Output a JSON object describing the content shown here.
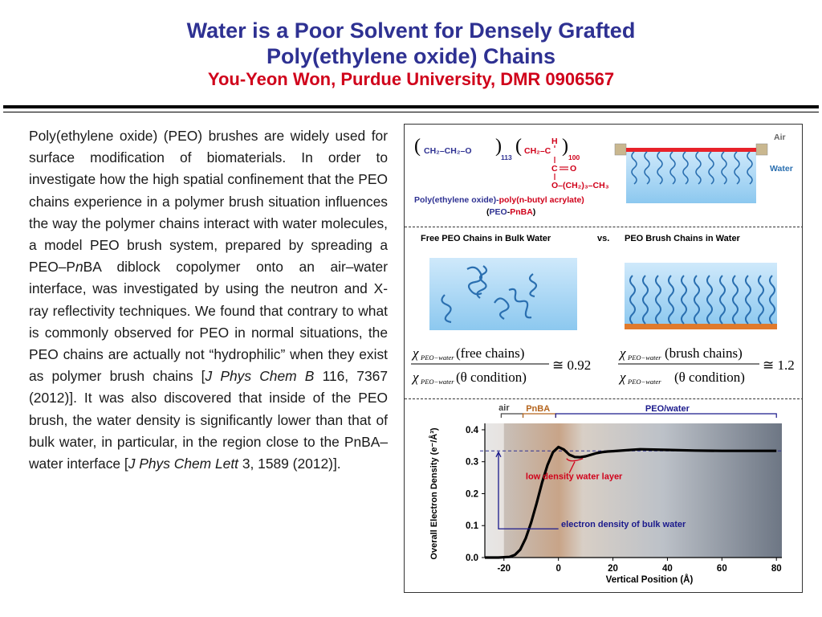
{
  "title": {
    "line1": "Water is a Poor Solvent for Densely Grafted",
    "line2": "Poly(ethylene oxide) Chains",
    "subtitle": "You-Yeon Won, Purdue University, DMR 0906567"
  },
  "body": {
    "p1": "Poly(ethylene oxide) (PEO) brushes are widely used for surface modification of biomaterials. In order to investigate how the high spatial confinement that the PEO chains experience in a polymer brush situation influences the way the polymer chains interact with water molecules, a model PEO brush system, prepared by spreading a PEO–P",
    "p1_italic": "n",
    "p2": "BA diblock copolymer onto an air–water interface, was investigated by using the neutron and X-ray reflectivity techniques. We found that contrary to what is commonly observed for PEO in normal situations, the PEO chains are actually not “hydrophilic” when they exist as polymer brush chains [",
    "cite1_journal": "J Phys Chem B",
    "cite1_rest": " 116, 7367 (2012)]. It was also discovered that inside of the PEO brush, the water density is significantly lower than that of bulk water, in particular, in the region close to the PnBA–water interface [",
    "cite2_journal": "J Phys Chem Lett",
    "cite2_rest": " 3, 1589 (2012)]."
  },
  "figure": {
    "panel1": {
      "peo_unit": "CH₂–CH₂–O",
      "peo_n": "113",
      "pnba_unit": "CH₂–C",
      "pnba_h": "H",
      "pnba_c": "C",
      "pnba_o": "O",
      "pnba_sidechain": "O–(CH₂)₃–CH₃",
      "pnba_n": "100",
      "name_black": "Poly(ethylene oxide)-",
      "name_red": "poly(n-butyl acrylate)",
      "abbr_open": "(",
      "abbr_peo": "PEO",
      "abbr_dash": "-",
      "abbr_pnba": "PnBA",
      "abbr_close": ")",
      "air_label": "Air",
      "water_label": "Water"
    },
    "panel2": {
      "heading_left": "Free PEO Chains in Bulk Water",
      "heading_vs": "vs.",
      "heading_right": "PEO Brush Chains in Water",
      "eq1_num": "(free chains)",
      "eq1_den": "(θ  condition)",
      "eq1_rhs": "≅ 0.92",
      "eq2_num": "(brush chains)",
      "eq2_den": "(θ  condition)",
      "eq2_rhs": "≅ 1.2",
      "chi_sub": "PEO−water"
    },
    "panel3": {
      "region_air": "air",
      "region_pnba": "PnBA",
      "region_peo": "PEO/water",
      "annotation_low": "low density water layer",
      "annotation_bulk": "electron density of bulk water",
      "colors": {
        "profile": "#000000",
        "annotation": "#d0021b",
        "axis_accent": "#2e3192"
      }
    }
  },
  "chart_data": {
    "type": "line",
    "title": "",
    "xlabel": "Vertical Position (Å)",
    "ylabel": "Overall Electron Density (e⁻/Å³)",
    "xlim": [
      -27,
      82
    ],
    "ylim": [
      0,
      0.42
    ],
    "xticks": [
      -20,
      0,
      20,
      40,
      60,
      80
    ],
    "yticks": [
      0.0,
      0.1,
      0.2,
      0.3,
      0.4
    ],
    "grid": false,
    "reference_line_y": 0.334,
    "series": [
      {
        "x": [
          -27,
          -22,
          -18,
          -16,
          -14,
          -12,
          -10,
          -8,
          -6,
          -4,
          -2,
          0,
          2,
          4,
          6,
          8,
          10,
          12,
          14,
          16,
          18,
          20,
          25,
          30,
          35,
          40,
          50,
          60,
          70,
          80
        ],
        "values": [
          0.0,
          0.0,
          0.002,
          0.008,
          0.025,
          0.06,
          0.11,
          0.17,
          0.235,
          0.29,
          0.33,
          0.346,
          0.338,
          0.322,
          0.315,
          0.314,
          0.317,
          0.322,
          0.327,
          0.33,
          0.332,
          0.333,
          0.336,
          0.339,
          0.338,
          0.337,
          0.335,
          0.334,
          0.334,
          0.334
        ]
      }
    ]
  }
}
